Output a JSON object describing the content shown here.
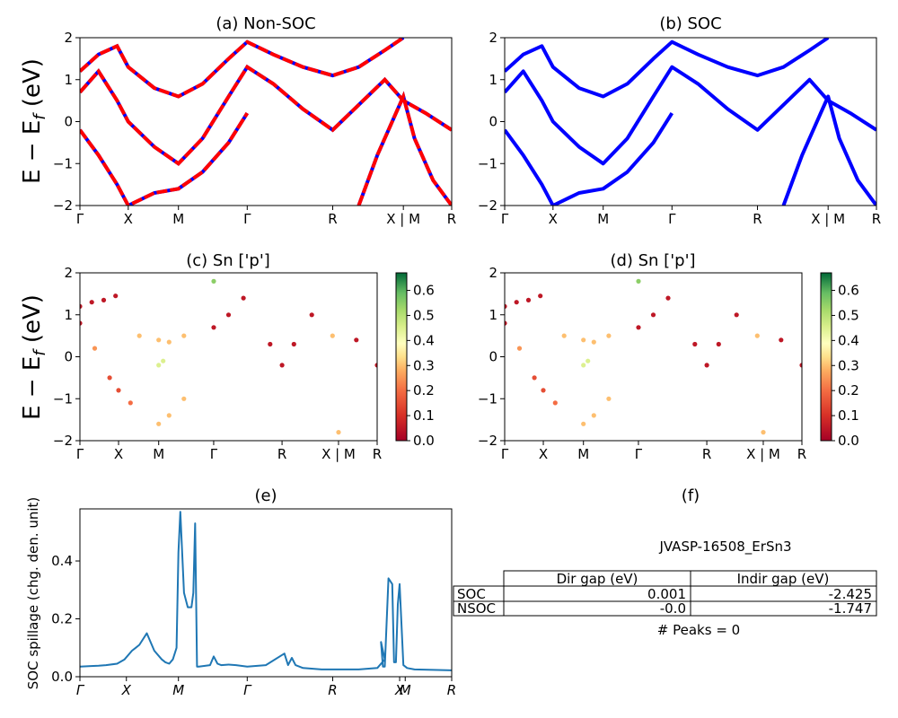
{
  "chart_data": [
    {
      "id": "a",
      "type": "line",
      "title": "(a) Non-SOC",
      "ylabel": "E - E_f (eV)",
      "ylim": [
        -2,
        2
      ],
      "yticks": [
        "2",
        "1",
        "0",
        "−1",
        "−2"
      ],
      "xticks": [
        {
          "label": "Γ",
          "pos": 0
        },
        {
          "label": "X",
          "pos": 0.13
        },
        {
          "label": "M",
          "pos": 0.265
        },
        {
          "label": "Γ",
          "pos": 0.45
        },
        {
          "label": "R",
          "pos": 0.68
        },
        {
          "label": "X | M",
          "pos": 0.87
        },
        {
          "label": "R",
          "pos": 1
        }
      ],
      "series": [
        {
          "color": "#ff0000",
          "style": "dashed-over-blue",
          "x": [
            0,
            0.05,
            0.1,
            0.13,
            0.2,
            0.265,
            0.33,
            0.4,
            0.45,
            0.52,
            0.6,
            0.68,
            0.75,
            0.82,
            0.87,
            0.93,
            1
          ],
          "y": [
            0.7,
            1.2,
            0.5,
            0.0,
            -0.6,
            -1.0,
            -0.4,
            0.6,
            1.3,
            0.9,
            0.3,
            -0.2,
            0.4,
            1.0,
            0.5,
            0.2,
            -0.2
          ]
        },
        {
          "color": "#ff0000",
          "style": "dashed-over-blue",
          "x": [
            0,
            0.05,
            0.1,
            0.13,
            0.2,
            0.265,
            0.33,
            0.4,
            0.45,
            0.52,
            0.6,
            0.68,
            0.75,
            0.82,
            0.87
          ],
          "y": [
            1.2,
            1.6,
            1.8,
            1.3,
            0.8,
            0.6,
            0.9,
            1.5,
            1.9,
            1.6,
            1.3,
            1.1,
            1.3,
            1.7,
            2.0
          ]
        },
        {
          "color": "#ff0000",
          "style": "dashed-over-blue",
          "x": [
            0,
            0.05,
            0.1,
            0.13,
            0.2,
            0.265,
            0.33,
            0.4,
            0.45
          ],
          "y": [
            -0.2,
            -0.8,
            -1.5,
            -2.0,
            -1.7,
            -1.6,
            -1.2,
            -0.5,
            0.2
          ]
        },
        {
          "color": "#ff0000",
          "style": "dashed-over-blue",
          "x": [
            0.75,
            0.8,
            0.85,
            0.87,
            0.9,
            0.95,
            1
          ],
          "y": [
            -2.0,
            -0.8,
            0.2,
            0.6,
            -0.4,
            -1.4,
            -2.0
          ]
        }
      ]
    },
    {
      "id": "b",
      "type": "line",
      "title": "(b) SOC",
      "ylim": [
        -2,
        2
      ],
      "yticks": [
        "2",
        "1",
        "0",
        "−1",
        "−2"
      ],
      "xticks": [
        {
          "label": "Γ",
          "pos": 0
        },
        {
          "label": "X",
          "pos": 0.13
        },
        {
          "label": "M",
          "pos": 0.265
        },
        {
          "label": "Γ",
          "pos": 0.45
        },
        {
          "label": "R",
          "pos": 0.68
        },
        {
          "label": "X | M",
          "pos": 0.87
        },
        {
          "label": "R",
          "pos": 1
        }
      ],
      "series": [
        {
          "color": "#0000ff",
          "x": [
            0,
            0.05,
            0.1,
            0.13,
            0.2,
            0.265,
            0.33,
            0.4,
            0.45,
            0.52,
            0.6,
            0.68,
            0.75,
            0.82,
            0.87,
            0.93,
            1
          ],
          "y": [
            0.7,
            1.2,
            0.5,
            0.0,
            -0.6,
            -1.0,
            -0.4,
            0.6,
            1.3,
            0.9,
            0.3,
            -0.2,
            0.4,
            1.0,
            0.5,
            0.2,
            -0.2
          ]
        },
        {
          "color": "#0000ff",
          "x": [
            0,
            0.05,
            0.1,
            0.13,
            0.2,
            0.265,
            0.33,
            0.4,
            0.45,
            0.52,
            0.6,
            0.68,
            0.75,
            0.82,
            0.87
          ],
          "y": [
            1.2,
            1.6,
            1.8,
            1.3,
            0.8,
            0.6,
            0.9,
            1.5,
            1.9,
            1.6,
            1.3,
            1.1,
            1.3,
            1.7,
            2.0
          ]
        },
        {
          "color": "#0000ff",
          "x": [
            0,
            0.05,
            0.1,
            0.13,
            0.2,
            0.265,
            0.33,
            0.4,
            0.45
          ],
          "y": [
            -0.2,
            -0.8,
            -1.5,
            -2.0,
            -1.7,
            -1.6,
            -1.2,
            -0.5,
            0.2
          ]
        },
        {
          "color": "#0000ff",
          "x": [
            0.75,
            0.8,
            0.85,
            0.87,
            0.9,
            0.95,
            1
          ],
          "y": [
            -2.0,
            -0.8,
            0.2,
            0.6,
            -0.4,
            -1.4,
            -2.0
          ]
        }
      ]
    },
    {
      "id": "c",
      "type": "scatter",
      "title": "(c)  Sn ['p']",
      "ylabel": "E - E_f (eV)",
      "ylim": [
        -2,
        2
      ],
      "yticks": [
        "2",
        "1",
        "0",
        "−1",
        "−2"
      ],
      "xticks": [
        {
          "label": "Γ",
          "pos": 0
        },
        {
          "label": "X",
          "pos": 0.13
        },
        {
          "label": "M",
          "pos": 0.265
        },
        {
          "label": "Γ",
          "pos": 0.45
        },
        {
          "label": "R",
          "pos": 0.68
        },
        {
          "label": "X | M",
          "pos": 0.87
        },
        {
          "label": "R",
          "pos": 1
        }
      ],
      "colorbar": {
        "ticks": [
          "0.6",
          "0.5",
          "0.4",
          "0.3",
          "0.2",
          "0.1",
          "0.0"
        ],
        "range": [
          0,
          0.67
        ]
      },
      "points": [
        [
          0,
          1.2,
          0.05
        ],
        [
          0.04,
          1.3,
          0.05
        ],
        [
          0.08,
          1.35,
          0.05
        ],
        [
          0.12,
          1.45,
          0.05
        ],
        [
          0,
          0.8,
          0.05
        ],
        [
          0.05,
          0.2,
          0.25
        ],
        [
          0.1,
          -0.5,
          0.15
        ],
        [
          0.13,
          -0.8,
          0.15
        ],
        [
          0.17,
          -1.1,
          0.2
        ],
        [
          0.2,
          0.5,
          0.3
        ],
        [
          0.265,
          0.4,
          0.3
        ],
        [
          0.3,
          0.35,
          0.3
        ],
        [
          0.35,
          0.5,
          0.3
        ],
        [
          0.265,
          -0.2,
          0.45
        ],
        [
          0.28,
          -0.1,
          0.45
        ],
        [
          0.265,
          -1.6,
          0.3
        ],
        [
          0.3,
          -1.4,
          0.3
        ],
        [
          0.35,
          -1.0,
          0.3
        ],
        [
          0.45,
          0.7,
          0.05
        ],
        [
          0.5,
          1.0,
          0.05
        ],
        [
          0.55,
          1.4,
          0.05
        ],
        [
          0.45,
          1.8,
          0.55
        ],
        [
          0.68,
          -0.2,
          0.05
        ],
        [
          0.64,
          0.3,
          0.05
        ],
        [
          0.72,
          0.3,
          0.05
        ],
        [
          0.78,
          1.0,
          0.05
        ],
        [
          0.85,
          0.5,
          0.3
        ],
        [
          0.87,
          -1.8,
          0.3
        ],
        [
          0.93,
          0.4,
          0.05
        ],
        [
          1,
          -0.2,
          0.05
        ]
      ]
    },
    {
      "id": "d",
      "type": "scatter",
      "title": "(d) Sn ['p']",
      "ylim": [
        -2,
        2
      ],
      "yticks": [
        "2",
        "1",
        "0",
        "−1",
        "−2"
      ],
      "xticks": [
        {
          "label": "Γ",
          "pos": 0
        },
        {
          "label": "X",
          "pos": 0.13
        },
        {
          "label": "M",
          "pos": 0.265
        },
        {
          "label": "Γ",
          "pos": 0.45
        },
        {
          "label": "R",
          "pos": 0.68
        },
        {
          "label": "X | M",
          "pos": 0.87
        },
        {
          "label": "R",
          "pos": 1
        }
      ],
      "colorbar": {
        "ticks": [
          "0.6",
          "0.5",
          "0.4",
          "0.3",
          "0.2",
          "0.1",
          "0.0"
        ],
        "range": [
          0,
          0.67
        ]
      },
      "points": [
        [
          0,
          1.2,
          0.05
        ],
        [
          0.04,
          1.3,
          0.05
        ],
        [
          0.08,
          1.35,
          0.05
        ],
        [
          0.12,
          1.45,
          0.05
        ],
        [
          0,
          0.8,
          0.05
        ],
        [
          0.05,
          0.2,
          0.25
        ],
        [
          0.1,
          -0.5,
          0.15
        ],
        [
          0.13,
          -0.8,
          0.15
        ],
        [
          0.17,
          -1.1,
          0.2
        ],
        [
          0.2,
          0.5,
          0.3
        ],
        [
          0.265,
          0.4,
          0.3
        ],
        [
          0.3,
          0.35,
          0.3
        ],
        [
          0.35,
          0.5,
          0.3
        ],
        [
          0.265,
          -0.2,
          0.45
        ],
        [
          0.28,
          -0.1,
          0.45
        ],
        [
          0.265,
          -1.6,
          0.3
        ],
        [
          0.3,
          -1.4,
          0.3
        ],
        [
          0.35,
          -1.0,
          0.3
        ],
        [
          0.45,
          0.7,
          0.05
        ],
        [
          0.5,
          1.0,
          0.05
        ],
        [
          0.55,
          1.4,
          0.05
        ],
        [
          0.45,
          1.8,
          0.55
        ],
        [
          0.68,
          -0.2,
          0.05
        ],
        [
          0.64,
          0.3,
          0.05
        ],
        [
          0.72,
          0.3,
          0.05
        ],
        [
          0.78,
          1.0,
          0.05
        ],
        [
          0.85,
          0.5,
          0.3
        ],
        [
          0.87,
          -1.8,
          0.3
        ],
        [
          0.93,
          0.4,
          0.05
        ],
        [
          1,
          -0.2,
          0.05
        ]
      ]
    },
    {
      "id": "e",
      "type": "line",
      "title": "(e)",
      "ylabel": "SOC spillage (chg. den. unit)",
      "ylim": [
        0,
        0.58
      ],
      "yticks": [
        {
          "label": "0.4",
          "value": 0.4
        },
        {
          "label": "0.2",
          "value": 0.2
        },
        {
          "label": "0.0",
          "value": 0.0
        }
      ],
      "xticks": [
        {
          "label": "Γ",
          "pos": 0
        },
        {
          "label": "X",
          "pos": 0.125
        },
        {
          "label": "M",
          "pos": 0.265
        },
        {
          "label": "Γ",
          "pos": 0.45
        },
        {
          "label": "R",
          "pos": 0.68
        },
        {
          "label": "X",
          "pos": 0.86
        },
        {
          "label": "M",
          "pos": 0.875
        },
        {
          "label": "R",
          "pos": 1
        }
      ],
      "series": [
        {
          "color": "#1f77b4",
          "x": [
            0,
            0.03,
            0.05,
            0.07,
            0.1,
            0.12,
            0.14,
            0.15,
            0.16,
            0.18,
            0.2,
            0.22,
            0.23,
            0.24,
            0.25,
            0.26,
            0.265,
            0.27,
            0.28,
            0.29,
            0.3,
            0.305,
            0.31,
            0.315,
            0.32,
            0.35,
            0.36,
            0.37,
            0.38,
            0.4,
            0.42,
            0.45,
            0.5,
            0.55,
            0.56,
            0.57,
            0.58,
            0.6,
            0.65,
            0.7,
            0.75,
            0.8,
            0.8,
            0.82,
            0.81,
            0.815,
            0.82,
            0.83,
            0.84,
            0.845,
            0.85,
            0.855,
            0.86,
            0.87,
            0.875,
            0.88,
            0.9,
            1
          ],
          "y": [
            0.035,
            0.037,
            0.038,
            0.04,
            0.045,
            0.06,
            0.09,
            0.1,
            0.11,
            0.15,
            0.09,
            0.06,
            0.05,
            0.045,
            0.06,
            0.1,
            0.43,
            0.57,
            0.29,
            0.24,
            0.24,
            0.29,
            0.53,
            0.035,
            0.035,
            0.04,
            0.07,
            0.045,
            0.04,
            0.042,
            0.04,
            0.035,
            0.04,
            0.08,
            0.04,
            0.065,
            0.04,
            0.03,
            0.025,
            0.025,
            0.025,
            0.03,
            0.03,
            0.06,
            0.12,
            0.035,
            0.035,
            0.34,
            0.32,
            0.05,
            0.05,
            0.25,
            0.32,
            0.04,
            0.035,
            0.03,
            0.025,
            0.022
          ]
        }
      ]
    }
  ],
  "panel_f": {
    "title": "(f)",
    "subtitle": "JVASP-16508_ErSn3",
    "headers": [
      "Dir gap (eV)",
      "Indir gap (eV)"
    ],
    "rows": [
      {
        "label": "SOC",
        "dir": "0.001",
        "indir": "-2.425"
      },
      {
        "label": "NSOC",
        "dir": "-0.0",
        "indir": "-1.747"
      }
    ],
    "peaks": "# Peaks = 0"
  }
}
